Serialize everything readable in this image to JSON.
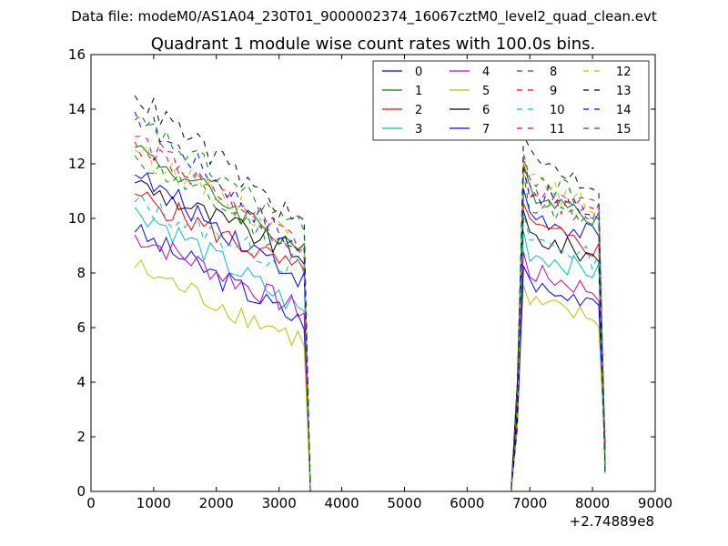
{
  "chart_data": {
    "type": "line",
    "suptitle": "Data file: modeM0/AS1A04_230T01_9000002374_16067cztM0_level2_quad_clean.evt",
    "title": "Quadrant 1 module wise count rates with 100.0s bins.",
    "xlabel": "",
    "ylabel": "",
    "x_offset_label": "+2.74889e8",
    "xlim": [
      0,
      9000
    ],
    "ylim": [
      0,
      16
    ],
    "xticks": [
      0,
      1000,
      2000,
      3000,
      4000,
      5000,
      6000,
      7000,
      8000,
      9000
    ],
    "yticks": [
      0,
      2,
      4,
      6,
      8,
      10,
      12,
      14,
      16
    ],
    "legend_position": "top-right",
    "legend_columns": 4,
    "x": [
      700,
      800,
      900,
      1000,
      1100,
      1200,
      1300,
      1400,
      1500,
      1600,
      1700,
      1800,
      1900,
      2000,
      2100,
      2200,
      2300,
      2400,
      2500,
      2600,
      2700,
      2800,
      2900,
      3000,
      3100,
      3200,
      3300,
      3400,
      3500,
      3600,
      3700,
      3800,
      3900,
      4000,
      4100,
      4200,
      4300,
      4400,
      4500,
      4600,
      4700,
      4800,
      4900,
      5000,
      5100,
      5200,
      5300,
      5400,
      5500,
      5600,
      5700,
      5800,
      5900,
      6000,
      6100,
      6200,
      6300,
      6400,
      6500,
      6600,
      6700,
      6800,
      6900,
      7000,
      7100,
      7200,
      7300,
      7400,
      7500,
      7600,
      7700,
      7800,
      7900,
      8000,
      8100,
      8200
    ],
    "series": [
      {
        "name": "0",
        "color": "#0000ff",
        "dash": "solid",
        "base": 9.5,
        "decay": 0.35,
        "level2": 9.8
      },
      {
        "name": "1",
        "color": "#008000",
        "dash": "solid",
        "base": 12.6,
        "decay": 0.3,
        "level2": 10.6
      },
      {
        "name": "2",
        "color": "#ff0000",
        "dash": "solid",
        "base": 10.9,
        "decay": 0.27,
        "level2": 9.3
      },
      {
        "name": "3",
        "color": "#00bfbf",
        "dash": "solid",
        "base": 10.4,
        "decay": 0.37,
        "level2": 8.4
      },
      {
        "name": "4",
        "color": "#bf00bf",
        "dash": "solid",
        "base": 9.4,
        "decay": 0.3,
        "level2": 7.7
      },
      {
        "name": "5",
        "color": "#bfbf00",
        "dash": "solid",
        "base": 8.2,
        "decay": 0.33,
        "level2": 6.6
      },
      {
        "name": "6",
        "color": "#000000",
        "dash": "solid",
        "base": 11.3,
        "decay": 0.24,
        "level2": 9.0
      },
      {
        "name": "7",
        "color": "#0000ff",
        "dash": "solid",
        "base": 11.6,
        "decay": 0.33,
        "level2": 7.2
      },
      {
        "name": "8",
        "color": "#008000",
        "dash": "dashed",
        "base": 12.3,
        "decay": 0.3,
        "level2": 10.2
      },
      {
        "name": "9",
        "color": "#ff0000",
        "dash": "dashed",
        "base": 12.8,
        "decay": 0.3,
        "level2": 10.5
      },
      {
        "name": "10",
        "color": "#00bfbf",
        "dash": "dashed",
        "base": 10.6,
        "decay": 0.24,
        "level2": 8.9
      },
      {
        "name": "11",
        "color": "#bf00bf",
        "dash": "dashed",
        "base": 13.0,
        "decay": 0.33,
        "level2": 10.7
      },
      {
        "name": "12",
        "color": "#bfbf00",
        "dash": "dashed",
        "base": 12.5,
        "decay": 0.27,
        "level2": 10.9
      },
      {
        "name": "13",
        "color": "#000000",
        "dash": "dashed",
        "base": 14.5,
        "decay": 0.33,
        "level2": 11.7
      },
      {
        "name": "14",
        "color": "#0000ff",
        "dash": "dashed",
        "base": 13.9,
        "decay": 0.37,
        "level2": 10.6
      },
      {
        "name": "15",
        "color": "#008000",
        "dash": "dashed",
        "base": 13.6,
        "decay": 0.3,
        "level2": 11.1
      }
    ],
    "segments": {
      "drop_x": [
        3400,
        3500
      ],
      "zero_start": 3500,
      "zero_end": 6700,
      "rise_x": [
        6700,
        6800,
        6900
      ],
      "end_x": [
        8100,
        8200
      ],
      "end_value_range": [
        0.6,
        1.8
      ]
    }
  }
}
